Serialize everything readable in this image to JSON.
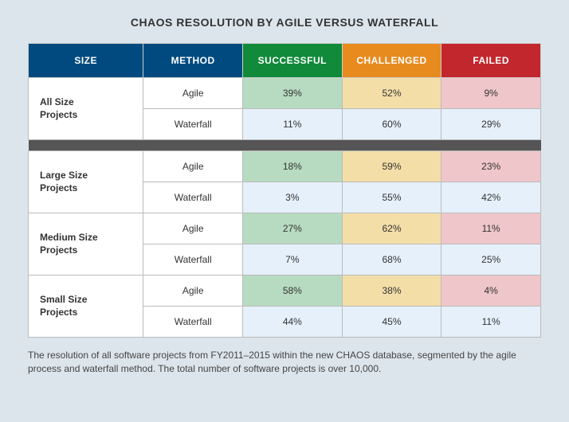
{
  "title": "CHAOS RESOLUTION BY AGILE VERSUS WATERFALL",
  "columns": {
    "size": "SIZE",
    "method": "METHOD",
    "successful": "SUCCESSFUL",
    "challenged": "CHALLENGED",
    "failed": "FAILED"
  },
  "header_colors": {
    "size": "#004a80",
    "method": "#004a80",
    "successful": "#118a3a",
    "challenged": "#e78b1f",
    "failed": "#c1272d"
  },
  "groups": [
    {
      "size": "All Size Projects",
      "rows": [
        {
          "method": "Agile",
          "successful": "39%",
          "challenged": "52%",
          "failed": "9%",
          "variant": "agile"
        },
        {
          "method": "Waterfall",
          "successful": "11%",
          "challenged": "60%",
          "failed": "29%",
          "variant": "waterfall"
        }
      ]
    },
    {
      "size": "Large Size Projects",
      "rows": [
        {
          "method": "Agile",
          "successful": "18%",
          "challenged": "59%",
          "failed": "23%",
          "variant": "agile"
        },
        {
          "method": "Waterfall",
          "successful": "3%",
          "challenged": "55%",
          "failed": "42%",
          "variant": "waterfall"
        }
      ]
    },
    {
      "size": "Medium Size Projects",
      "rows": [
        {
          "method": "Agile",
          "successful": "27%",
          "challenged": "62%",
          "failed": "11%",
          "variant": "agile"
        },
        {
          "method": "Waterfall",
          "successful": "7%",
          "challenged": "68%",
          "failed": "25%",
          "variant": "waterfall"
        }
      ]
    },
    {
      "size": "Small Size Projects",
      "rows": [
        {
          "method": "Agile",
          "successful": "58%",
          "challenged": "38%",
          "failed": "4%",
          "variant": "agile"
        },
        {
          "method": "Waterfall",
          "successful": "44%",
          "challenged": "45%",
          "failed": "11%",
          "variant": "waterfall"
        }
      ]
    }
  ],
  "cell_colors": {
    "method": "#ffffff",
    "successful_agile": "#b7dbc0",
    "successful_waterfall": "#e5f0fa",
    "challenged_agile": "#f4dea8",
    "challenged_waterfall": "#e5f0fa",
    "failed_agile": "#efc6c9",
    "failed_waterfall": "#e5f0fa"
  },
  "separator_color": "#555555",
  "caption": "The resolution of all software projects from FY2011–2015 within the new CHAOS database, segmented by the agile process and waterfall method. The total number of software projects is over 10,000.",
  "col_widths": [
    "22%",
    "19%",
    "19%",
    "19%",
    "19%"
  ]
}
